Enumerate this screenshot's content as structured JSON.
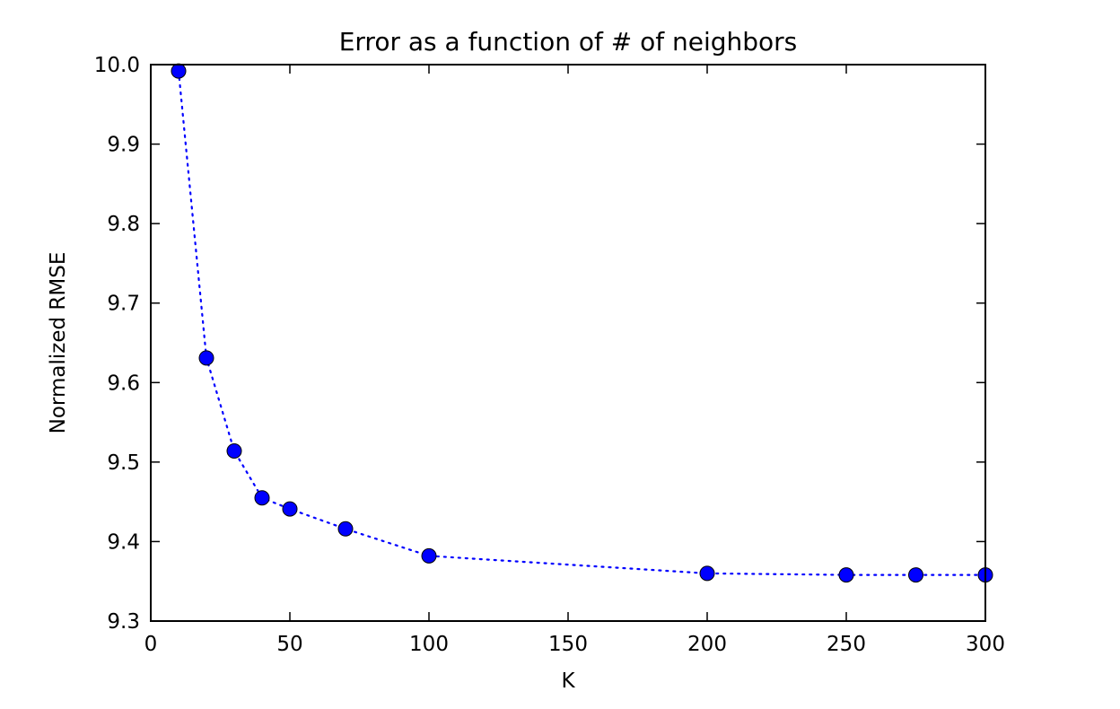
{
  "chart_data": {
    "type": "line",
    "title": "Error as a function of # of neighbors",
    "xlabel": "K",
    "ylabel": "Normalized RMSE",
    "xlim": [
      0,
      300
    ],
    "ylim": [
      9.3,
      10.0
    ],
    "xticks": [
      "0",
      "50",
      "100",
      "150",
      "200",
      "250",
      "300"
    ],
    "yticks": [
      "9.3",
      "9.4",
      "9.5",
      "9.6",
      "9.7",
      "9.8",
      "9.9",
      "10.0"
    ],
    "grid": false,
    "line_style": "dotted",
    "marker": "circle",
    "series_color": "#0000ff",
    "series": [
      {
        "x": [
          10,
          20,
          30,
          40,
          50,
          70,
          100,
          200,
          250,
          275,
          300
        ],
        "y": [
          9.992,
          9.631,
          9.514,
          9.455,
          9.441,
          9.416,
          9.382,
          9.36,
          9.358,
          9.358,
          9.358
        ]
      }
    ]
  }
}
